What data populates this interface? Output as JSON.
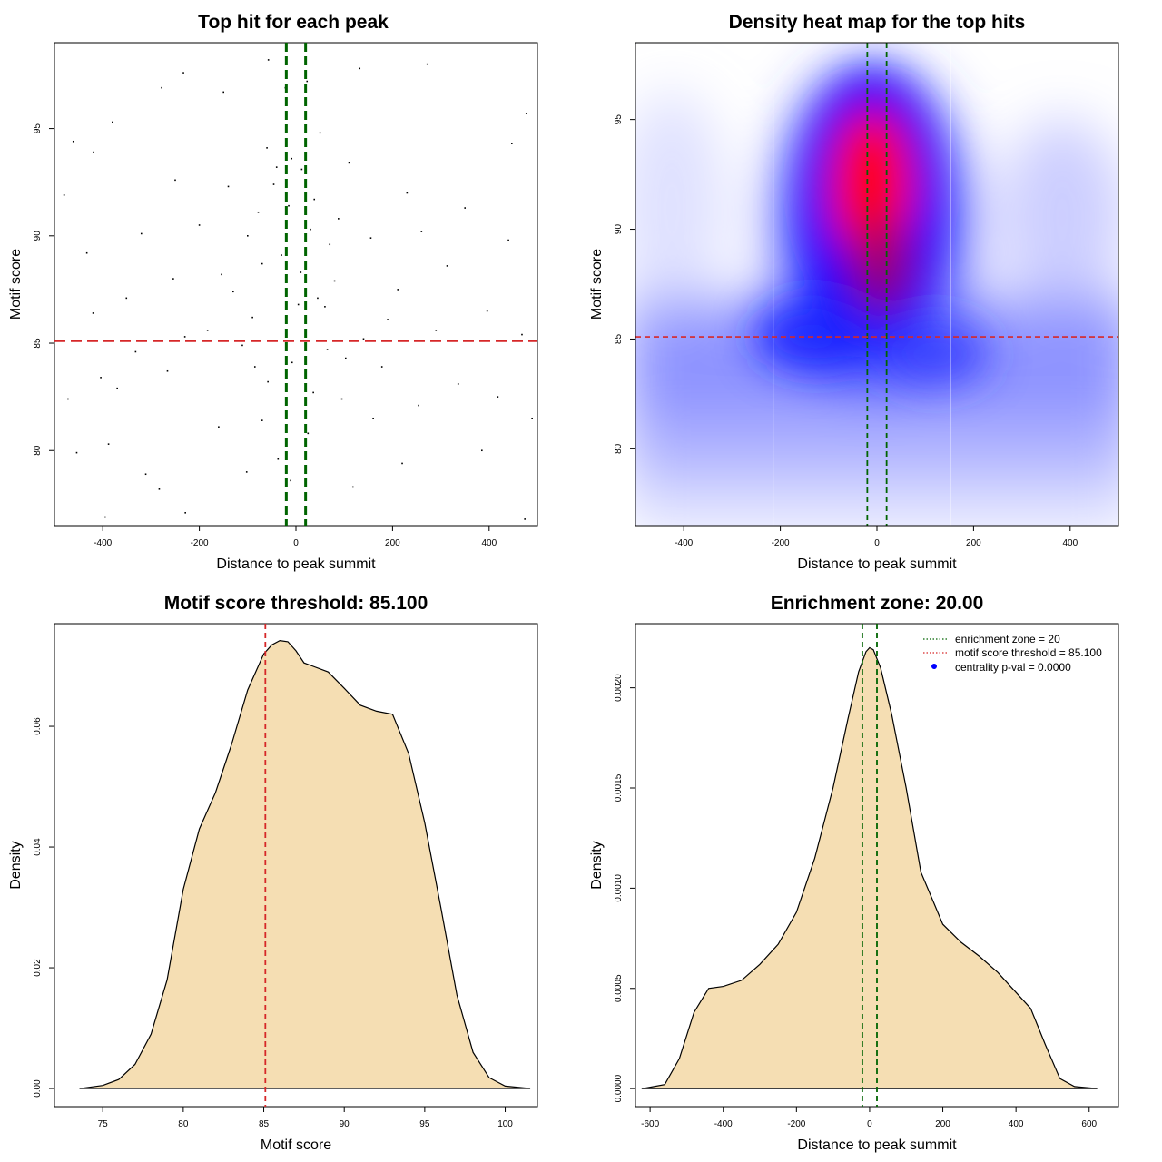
{
  "colors": {
    "green_line": "#006400",
    "red_line": "#d62728",
    "density_fill": "#f5deb3",
    "heat_low": "#ffffff",
    "heat_mid": "#0000ff",
    "heat_high": "#ff0000",
    "legend_dot": "#0000ff"
  },
  "chart_data": [
    {
      "id": "scatter",
      "type": "scatter",
      "title": "Top hit for each peak",
      "xlabel": "Distance to peak summit",
      "ylabel": "Motif score",
      "xlim": [
        -500,
        500
      ],
      "ylim": [
        76.5,
        99
      ],
      "xticks": [
        -400,
        -200,
        0,
        200,
        400
      ],
      "yticks": [
        80,
        85,
        90,
        95
      ],
      "vlines": [
        -20,
        20
      ],
      "hline": 85.1,
      "points": [
        [
          -461,
          94.4
        ],
        [
          -419,
          93.9
        ],
        [
          -380,
          95.3
        ],
        [
          -278,
          96.9
        ],
        [
          -233,
          97.6
        ],
        [
          -150,
          96.7
        ],
        [
          -57,
          98.2
        ],
        [
          -22,
          96.9
        ],
        [
          23,
          97.2
        ],
        [
          132,
          97.8
        ],
        [
          272,
          98.0
        ],
        [
          477,
          95.7
        ],
        [
          447,
          94.3
        ],
        [
          -480,
          91.9
        ],
        [
          -433,
          89.2
        ],
        [
          -351,
          87.1
        ],
        [
          -254,
          88.0
        ],
        [
          -154,
          88.2
        ],
        [
          -78,
          91.1
        ],
        [
          -46,
          92.4
        ],
        [
          -9,
          93.6
        ],
        [
          12,
          93.1
        ],
        [
          38,
          91.7
        ],
        [
          88,
          90.8
        ],
        [
          155,
          89.9
        ],
        [
          211,
          87.5
        ],
        [
          313,
          88.6
        ],
        [
          396,
          86.5
        ],
        [
          468,
          85.4
        ],
        [
          -472,
          82.4
        ],
        [
          -404,
          83.4
        ],
        [
          -332,
          84.6
        ],
        [
          -266,
          83.7
        ],
        [
          -183,
          85.6
        ],
        [
          -111,
          84.9
        ],
        [
          -58,
          83.2
        ],
        [
          -8,
          84.1
        ],
        [
          36,
          82.7
        ],
        [
          103,
          84.3
        ],
        [
          178,
          83.9
        ],
        [
          254,
          82.1
        ],
        [
          336,
          83.1
        ],
        [
          418,
          82.5
        ],
        [
          489,
          81.5
        ],
        [
          -454,
          79.9
        ],
        [
          -388,
          80.3
        ],
        [
          -311,
          78.9
        ],
        [
          -229,
          77.1
        ],
        [
          -102,
          79.0
        ],
        [
          -37,
          79.6
        ],
        [
          -11,
          78.6
        ],
        [
          25,
          80.8
        ],
        [
          118,
          78.3
        ],
        [
          220,
          79.4
        ],
        [
          385,
          80.0
        ],
        [
          474,
          76.8
        ],
        [
          -395,
          76.9
        ],
        [
          -283,
          78.2
        ],
        [
          -160,
          81.1
        ],
        [
          -70,
          81.4
        ],
        [
          60,
          86.7
        ],
        [
          140,
          85.2
        ],
        [
          -130,
          87.4
        ],
        [
          -200,
          90.5
        ],
        [
          -30,
          89.1
        ],
        [
          70,
          89.6
        ],
        [
          260,
          90.2
        ],
        [
          350,
          91.3
        ],
        [
          -320,
          90.1
        ],
        [
          -420,
          86.4
        ],
        [
          -230,
          85.3
        ],
        [
          -90,
          86.2
        ],
        [
          5,
          86.8
        ],
        [
          80,
          87.9
        ],
        [
          190,
          86.1
        ],
        [
          290,
          85.6
        ],
        [
          440,
          89.8
        ],
        [
          -140,
          92.3
        ],
        [
          -60,
          94.1
        ],
        [
          50,
          94.8
        ],
        [
          110,
          93.4
        ],
        [
          -250,
          92.6
        ],
        [
          230,
          92.0
        ],
        [
          -370,
          82.9
        ],
        [
          160,
          81.5
        ],
        [
          -15,
          91.4
        ],
        [
          -40,
          93.2
        ],
        [
          30,
          90.3
        ],
        [
          -70,
          88.7
        ],
        [
          10,
          88.3
        ],
        [
          45,
          87.1
        ],
        [
          -100,
          90.0
        ],
        [
          -85,
          83.9
        ],
        [
          65,
          84.7
        ],
        [
          95,
          82.4
        ]
      ]
    },
    {
      "id": "heatmap",
      "type": "heatmap",
      "title": "Density heat map for the top hits",
      "xlabel": "Distance to peak summit",
      "ylabel": "Motif score",
      "xlim": [
        -500,
        500
      ],
      "ylim": [
        76.5,
        98.5
      ],
      "xticks": [
        -400,
        -200,
        0,
        200,
        400
      ],
      "yticks": [
        80,
        85,
        90,
        95
      ],
      "vlines": [
        -20,
        20
      ],
      "hline": 85.1
    },
    {
      "id": "score_density",
      "type": "area",
      "title": "Motif score threshold: 85.100",
      "xlabel": "Motif score",
      "ylabel": "Density",
      "xlim": [
        72,
        102
      ],
      "ylim": [
        -0.003,
        0.077
      ],
      "xticks": [
        75,
        80,
        85,
        90,
        95,
        100
      ],
      "yticks": [
        0.0,
        0.02,
        0.04,
        0.06
      ],
      "ytick_labels": [
        "0.00",
        "0.02",
        "0.04",
        "0.06"
      ],
      "vline": 85.1,
      "x": [
        73.6,
        75.0,
        76.0,
        77.0,
        78.0,
        79.0,
        80.0,
        81.0,
        82.0,
        83.0,
        84.0,
        85.0,
        85.5,
        86.0,
        86.5,
        87.0,
        87.5,
        88.0,
        89.0,
        90.0,
        91.0,
        92.0,
        93.0,
        94.0,
        95.0,
        96.0,
        97.0,
        98.0,
        99.0,
        100.0,
        101.5
      ],
      "y": [
        0.0,
        0.0005,
        0.0015,
        0.004,
        0.009,
        0.018,
        0.033,
        0.043,
        0.049,
        0.057,
        0.066,
        0.072,
        0.0735,
        0.0742,
        0.074,
        0.0725,
        0.0705,
        0.07,
        0.069,
        0.0663,
        0.0635,
        0.0625,
        0.062,
        0.0555,
        0.044,
        0.03,
        0.0155,
        0.006,
        0.0018,
        0.0004,
        0.0
      ]
    },
    {
      "id": "distance_density",
      "type": "area",
      "title": "Enrichment zone: 20.00",
      "xlabel": "Distance to peak summit",
      "ylabel": "Density",
      "xlim": [
        -640,
        680
      ],
      "ylim": [
        -9e-05,
        0.00232
      ],
      "xticks": [
        -600,
        -400,
        -200,
        0,
        200,
        400,
        600
      ],
      "yticks": [
        0.0,
        0.0005,
        0.001,
        0.0015,
        0.002
      ],
      "ytick_labels": [
        "0.0000",
        "0.0005",
        "0.0010",
        "0.0015",
        "0.0020"
      ],
      "vlines": [
        -20,
        20
      ],
      "x": [
        -620,
        -560,
        -520,
        -480,
        -440,
        -400,
        -350,
        -300,
        -250,
        -200,
        -150,
        -100,
        -60,
        -30,
        -10,
        0,
        10,
        30,
        60,
        100,
        140,
        200,
        250,
        300,
        350,
        400,
        440,
        480,
        520,
        560,
        620
      ],
      "y": [
        0.0,
        2e-05,
        0.00015,
        0.00038,
        0.0005,
        0.00051,
        0.00054,
        0.00062,
        0.00072,
        0.00088,
        0.00115,
        0.0015,
        0.00184,
        0.00208,
        0.00218,
        0.0022,
        0.00219,
        0.0021,
        0.00187,
        0.0015,
        0.00108,
        0.00082,
        0.00073,
        0.00066,
        0.00058,
        0.00048,
        0.0004,
        0.00022,
        5e-05,
        1e-05,
        0.0
      ]
    }
  ],
  "legend": [
    {
      "label": "enrichment zone = 20",
      "color": "#006400",
      "kind": "dotted"
    },
    {
      "label": "motif score threshold = 85.100",
      "color": "#d62728",
      "kind": "dotted"
    },
    {
      "label": "centrality p-val = 0.0000",
      "color": "#0000ff",
      "kind": "dot"
    }
  ]
}
